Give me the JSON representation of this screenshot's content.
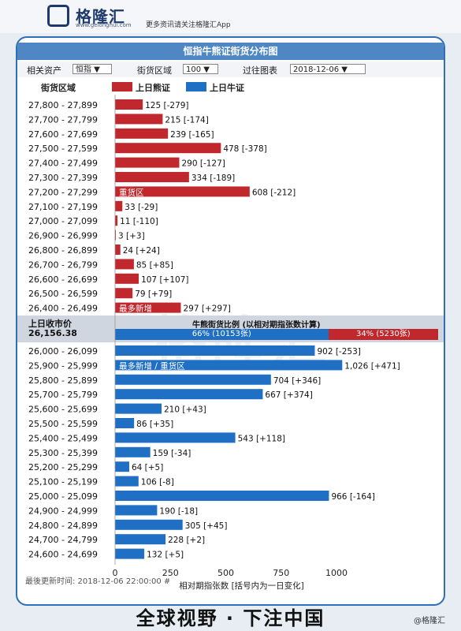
{
  "header": {
    "logo_name": "格隆汇",
    "logo_url": "www.gelonghui.com",
    "tagline": "更多资讯请关注格隆汇App"
  },
  "title": "恒指牛熊证街货分布图",
  "filters": {
    "asset_label": "相关资产",
    "asset_value": "恒指",
    "range_label": "街货区域",
    "range_value": "100",
    "history_label": "过往图表",
    "history_value": "2018-12-06"
  },
  "legend": {
    "column_header": "街货区域",
    "bear": "上日熊证",
    "bull": "上日牛证"
  },
  "close": {
    "label": "上日收市价",
    "value": "26,156.38"
  },
  "ratio": {
    "title": "牛熊街货比例 (以相对期指张数计算)",
    "bull_label": "66% (10153张)",
    "bear_label": "34% (5230张)",
    "bull_pct": 66,
    "bear_pct": 34
  },
  "footer": {
    "updated": "最後更新时间: 2018-12-06 22:00:00 #"
  },
  "bottom_title": "全球视野 · 下注中国",
  "watermark": "@格隆汇",
  "chart_data": {
    "type": "bar",
    "orientation": "horizontal",
    "xlabel": "相对期指张数 [括号内为一日变化]",
    "xlim": [
      0,
      1000
    ],
    "xticks": [
      0,
      250,
      500,
      750,
      1000
    ],
    "colors": {
      "bear": "#c1282d",
      "bull": "#1f6fc4"
    },
    "bear": [
      {
        "range": "27,800 - 27,899",
        "value": 125,
        "label": "125 [-279]",
        "note": ""
      },
      {
        "range": "27,700 - 27,799",
        "value": 215,
        "label": "215 [-174]",
        "note": ""
      },
      {
        "range": "27,600 - 27,699",
        "value": 239,
        "label": "239 [-165]",
        "note": ""
      },
      {
        "range": "27,500 - 27,599",
        "value": 478,
        "label": "478 [-378]",
        "note": ""
      },
      {
        "range": "27,400 - 27,499",
        "value": 290,
        "label": "290 [-127]",
        "note": ""
      },
      {
        "range": "27,300 - 27,399",
        "value": 334,
        "label": "334 [-189]",
        "note": ""
      },
      {
        "range": "27,200 - 27,299",
        "value": 608,
        "label": "608 [-212]",
        "note": "重货区"
      },
      {
        "range": "27,100 - 27,199",
        "value": 33,
        "label": "33 [-29]",
        "note": ""
      },
      {
        "range": "27,000 - 27,099",
        "value": 11,
        "label": "11 [-110]",
        "note": ""
      },
      {
        "range": "26,900 - 26,999",
        "value": 3,
        "label": "3 [+3]",
        "note": ""
      },
      {
        "range": "26,800 - 26,899",
        "value": 24,
        "label": "24 [+24]",
        "note": ""
      },
      {
        "range": "26,700 - 26,799",
        "value": 85,
        "label": "85 [+85]",
        "note": ""
      },
      {
        "range": "26,600 - 26,699",
        "value": 107,
        "label": "107 [+107]",
        "note": ""
      },
      {
        "range": "26,500 - 26,599",
        "value": 79,
        "label": "79 [+79]",
        "note": ""
      },
      {
        "range": "26,400 - 26,499",
        "value": 297,
        "label": "297 [+297]",
        "note": "最多新增"
      }
    ],
    "bull": [
      {
        "range": "26,000 - 26,099",
        "value": 902,
        "label": "902 [-253]",
        "note": ""
      },
      {
        "range": "25,900 - 25,999",
        "value": 1026,
        "label": "1,026 [+471]",
        "note": "最多新增 / 重货区"
      },
      {
        "range": "25,800 - 25,899",
        "value": 704,
        "label": "704 [+346]",
        "note": ""
      },
      {
        "range": "25,700 - 25,799",
        "value": 667,
        "label": "667 [+374]",
        "note": ""
      },
      {
        "range": "25,600 - 25,699",
        "value": 210,
        "label": "210 [+43]",
        "note": ""
      },
      {
        "range": "25,500 - 25,599",
        "value": 86,
        "label": "86 [+35]",
        "note": ""
      },
      {
        "range": "25,400 - 25,499",
        "value": 543,
        "label": "543 [+118]",
        "note": ""
      },
      {
        "range": "25,300 - 25,399",
        "value": 159,
        "label": "159 [-34]",
        "note": ""
      },
      {
        "range": "25,200 - 25,299",
        "value": 64,
        "label": "64 [+5]",
        "note": ""
      },
      {
        "range": "25,100 - 25,199",
        "value": 106,
        "label": "106 [-8]",
        "note": ""
      },
      {
        "range": "25,000 - 25,099",
        "value": 966,
        "label": "966 [-164]",
        "note": ""
      },
      {
        "range": "24,900 - 24,999",
        "value": 190,
        "label": "190 [-18]",
        "note": ""
      },
      {
        "range": "24,800 - 24,899",
        "value": 305,
        "label": "305 [+45]",
        "note": ""
      },
      {
        "range": "24,700 - 24,799",
        "value": 228,
        "label": "228 [+2]",
        "note": ""
      },
      {
        "range": "24,600 - 24,699",
        "value": 132,
        "label": "132 [+5]",
        "note": ""
      }
    ]
  }
}
